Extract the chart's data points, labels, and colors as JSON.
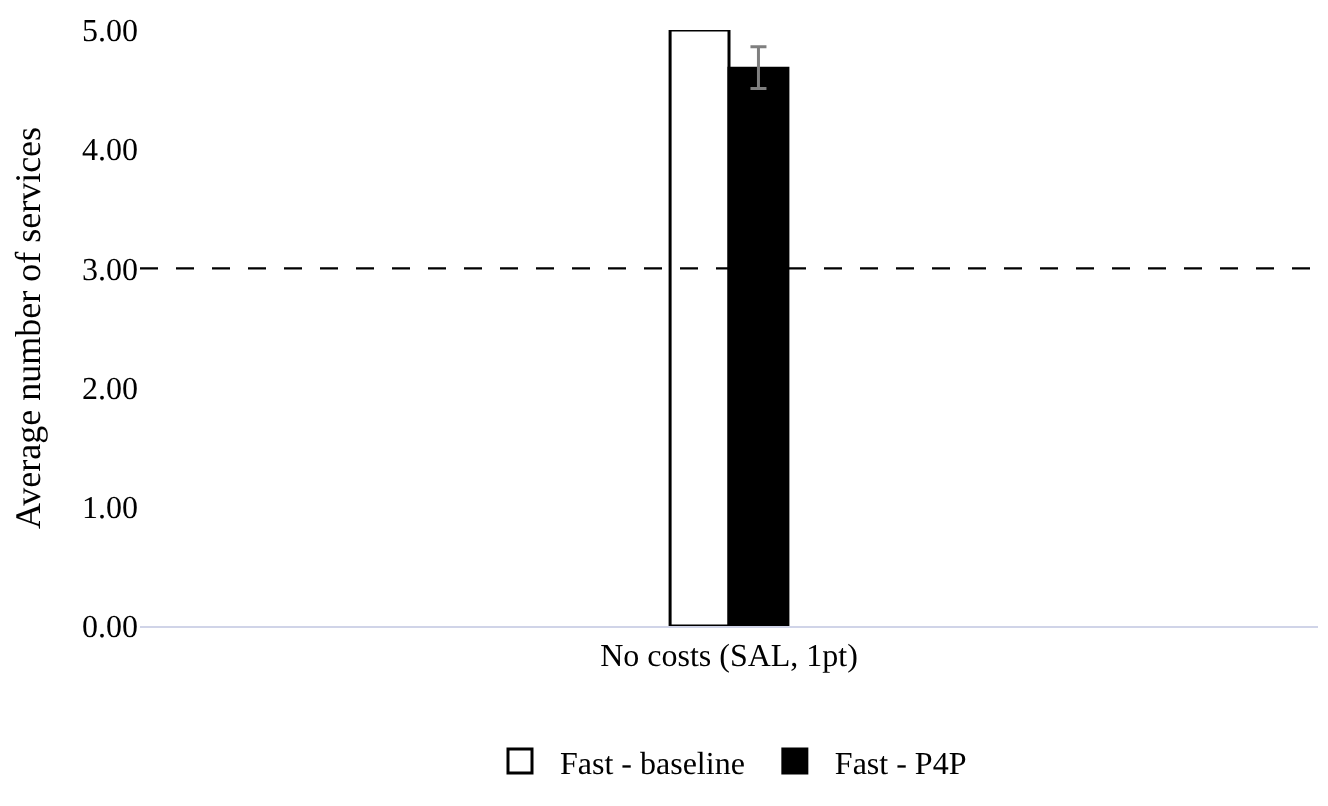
{
  "chart_data": {
    "type": "bar",
    "ylabel": "Average number of services",
    "categories": [
      "No costs (SAL, 1pt)"
    ],
    "series": [
      {
        "name": "Fast - baseline",
        "color": "#ffffff",
        "values": [
          5.0
        ]
      },
      {
        "name": "Fast - P4P",
        "color": "#000000",
        "values": [
          4.68
        ],
        "errors": [
          [
            4.51,
            4.86
          ]
        ]
      }
    ],
    "ylim": [
      0,
      5
    ],
    "yticks": [
      {
        "value": 0,
        "label": "0.00"
      },
      {
        "value": 1,
        "label": "1.00"
      },
      {
        "value": 2,
        "label": "2.00"
      },
      {
        "value": 3,
        "label": "3.00"
      },
      {
        "value": 4,
        "label": "4.00"
      },
      {
        "value": 5,
        "label": "5.00"
      }
    ],
    "ref_lines": [
      {
        "axis": "y",
        "value": 3,
        "color": "#000000",
        "line_style": "dashed"
      }
    ],
    "legend": "bottom"
  }
}
